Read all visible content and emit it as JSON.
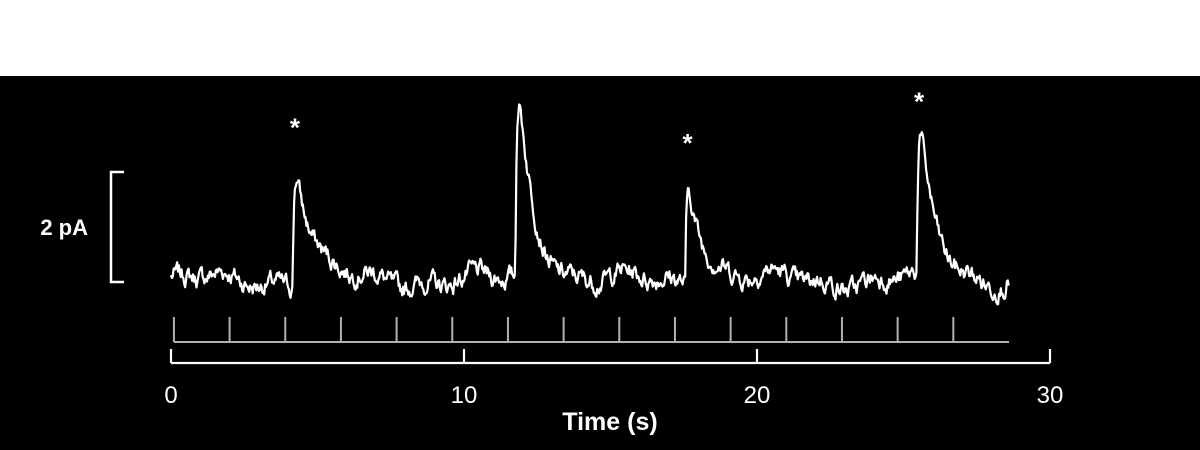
{
  "colors": {
    "background": "#000000",
    "trace": "#ffffff",
    "stim_ticks": "#b0b0b0",
    "header": "#ffffff"
  },
  "chart_data": {
    "type": "line",
    "title": "",
    "xlabel": "Time (s)",
    "ylabel": "",
    "xlim": [
      0,
      30
    ],
    "x_ticks": [
      "0",
      "10",
      "20",
      "30"
    ],
    "scale_bar": {
      "label": "2 pA",
      "value_pA": 2
    },
    "baseline_pA": 0,
    "events": [
      {
        "time_s": 4.3,
        "peak_pA": 2.3,
        "marked": true,
        "marker": "*"
      },
      {
        "time_s": 11.9,
        "peak_pA": 3.6,
        "marked": false,
        "marker": ""
      },
      {
        "time_s": 17.7,
        "peak_pA": 2.0,
        "marked": true,
        "marker": "*"
      },
      {
        "time_s": 25.6,
        "peak_pA": 2.8,
        "marked": true,
        "marker": "*"
      }
    ],
    "stimulus_times_s": [
      0.1,
      2.0,
      3.9,
      5.8,
      7.7,
      9.6,
      11.5,
      13.4,
      15.3,
      17.2,
      19.1,
      21.0,
      22.9,
      24.8,
      26.7
    ],
    "trace_end_s": 28.6
  }
}
